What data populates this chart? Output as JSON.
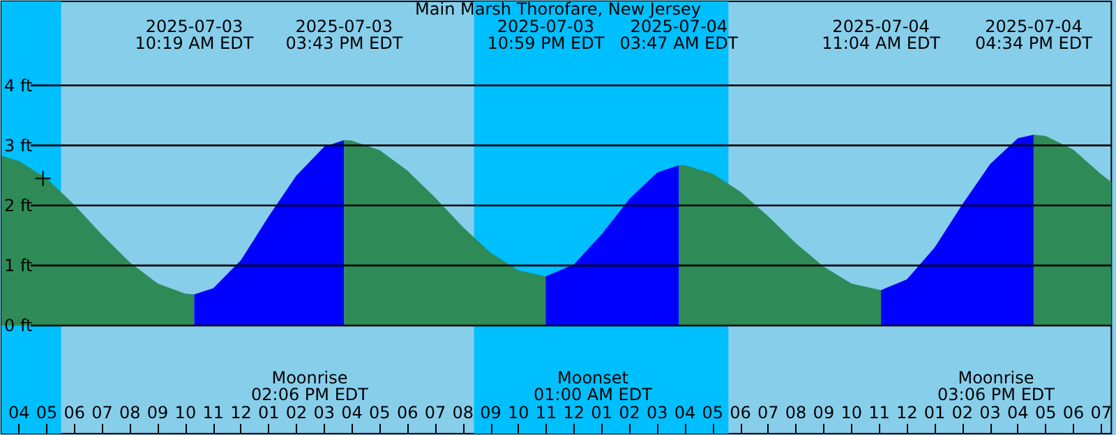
{
  "chart_data": {
    "type": "area",
    "title": "Main Marsh Thorofare, New Jersey",
    "xlim": [
      "2025-07-03T03:22",
      "2025-07-04T19:22"
    ],
    "ylim": [
      -1.8,
      5.4
    ],
    "xticks": [
      {
        "value": "2025-07-03T04:00",
        "label": "04"
      },
      {
        "value": "2025-07-03T05:00",
        "label": "05"
      },
      {
        "value": "2025-07-03T06:00",
        "label": "06"
      },
      {
        "value": "2025-07-03T07:00",
        "label": "07"
      },
      {
        "value": "2025-07-03T08:00",
        "label": "08"
      },
      {
        "value": "2025-07-03T09:00",
        "label": "09"
      },
      {
        "value": "2025-07-03T10:00",
        "label": "10"
      },
      {
        "value": "2025-07-03T11:00",
        "label": "11"
      },
      {
        "value": "2025-07-03T12:00",
        "label": "12"
      },
      {
        "value": "2025-07-03T13:00",
        "label": "01"
      },
      {
        "value": "2025-07-03T14:00",
        "label": "02"
      },
      {
        "value": "2025-07-03T15:00",
        "label": "03"
      },
      {
        "value": "2025-07-03T16:00",
        "label": "04"
      },
      {
        "value": "2025-07-03T17:00",
        "label": "05"
      },
      {
        "value": "2025-07-03T18:00",
        "label": "06"
      },
      {
        "value": "2025-07-03T19:00",
        "label": "07"
      },
      {
        "value": "2025-07-03T20:00",
        "label": "08"
      },
      {
        "value": "2025-07-03T21:00",
        "label": "09"
      },
      {
        "value": "2025-07-03T22:00",
        "label": "10"
      },
      {
        "value": "2025-07-03T23:00",
        "label": "11"
      },
      {
        "value": "2025-07-04T00:00",
        "label": "12"
      },
      {
        "value": "2025-07-04T01:00",
        "label": "01"
      },
      {
        "value": "2025-07-04T02:00",
        "label": "02"
      },
      {
        "value": "2025-07-04T03:00",
        "label": "03"
      },
      {
        "value": "2025-07-04T04:00",
        "label": "04"
      },
      {
        "value": "2025-07-04T05:00",
        "label": "05"
      },
      {
        "value": "2025-07-04T06:00",
        "label": "06"
      },
      {
        "value": "2025-07-04T07:00",
        "label": "07"
      },
      {
        "value": "2025-07-04T08:00",
        "label": "08"
      },
      {
        "value": "2025-07-04T09:00",
        "label": "09"
      },
      {
        "value": "2025-07-04T10:00",
        "label": "10"
      },
      {
        "value": "2025-07-04T11:00",
        "label": "11"
      },
      {
        "value": "2025-07-04T12:00",
        "label": "12"
      },
      {
        "value": "2025-07-04T13:00",
        "label": "01"
      },
      {
        "value": "2025-07-04T14:00",
        "label": "02"
      },
      {
        "value": "2025-07-04T15:00",
        "label": "03"
      },
      {
        "value": "2025-07-04T16:00",
        "label": "04"
      },
      {
        "value": "2025-07-04T17:00",
        "label": "05"
      },
      {
        "value": "2025-07-04T18:00",
        "label": "06"
      },
      {
        "value": "2025-07-04T19:00",
        "label": "07"
      }
    ],
    "yticks": [
      {
        "value": 0,
        "label": "0 ft"
      },
      {
        "value": 1,
        "label": "1 ft"
      },
      {
        "value": 2,
        "label": "2 ft"
      },
      {
        "value": 3,
        "label": "3 ft"
      },
      {
        "value": 4,
        "label": "4 ft"
      }
    ],
    "grid": "y",
    "bands": [
      {
        "axis": "x",
        "from": "2025-07-03T03:22",
        "to": "2025-07-03T05:31",
        "color": "#00bfff"
      },
      {
        "axis": "x",
        "from": "2025-07-03T20:24",
        "to": "2025-07-04T05:34",
        "color": "#00bfff"
      }
    ],
    "series": [
      {
        "color": "#2e8b57",
        "x": [
          "2025-07-03T03:22",
          "2025-07-03T04:00",
          "2025-07-03T05:00",
          "2025-07-03T06:00",
          "2025-07-03T07:00",
          "2025-07-03T08:00",
          "2025-07-03T09:00",
          "2025-07-03T10:00",
          "2025-07-03T10:19"
        ],
        "values": [
          2.83,
          2.74,
          2.45,
          2.01,
          1.51,
          1.05,
          0.7,
          0.53,
          0.52
        ]
      },
      {
        "color": "#0000ff",
        "x": [
          "2025-07-03T10:19",
          "2025-07-03T11:00",
          "2025-07-03T12:00",
          "2025-07-03T13:00",
          "2025-07-03T14:00",
          "2025-07-03T15:00",
          "2025-07-03T15:43"
        ],
        "values": [
          0.52,
          0.62,
          1.09,
          1.82,
          2.5,
          2.98,
          3.09
        ]
      },
      {
        "color": "#2e8b57",
        "x": [
          "2025-07-03T15:43",
          "2025-07-03T16:00",
          "2025-07-03T17:00",
          "2025-07-03T18:00",
          "2025-07-03T19:00",
          "2025-07-03T20:00",
          "2025-07-03T21:00",
          "2025-07-03T22:00",
          "2025-07-03T22:59"
        ],
        "values": [
          3.09,
          3.08,
          2.92,
          2.58,
          2.13,
          1.64,
          1.21,
          0.92,
          0.82
        ]
      },
      {
        "color": "#0000ff",
        "x": [
          "2025-07-03T22:59",
          "2025-07-04T00:00",
          "2025-07-04T01:00",
          "2025-07-04T02:00",
          "2025-07-04T03:00",
          "2025-07-04T03:47"
        ],
        "values": [
          0.82,
          1.02,
          1.52,
          2.11,
          2.55,
          2.67
        ]
      },
      {
        "color": "#2e8b57",
        "x": [
          "2025-07-04T03:47",
          "2025-07-04T04:00",
          "2025-07-04T05:00",
          "2025-07-04T06:00",
          "2025-07-04T07:00",
          "2025-07-04T08:00",
          "2025-07-04T09:00",
          "2025-07-04T10:00",
          "2025-07-04T11:04"
        ],
        "values": [
          2.67,
          2.67,
          2.53,
          2.23,
          1.82,
          1.37,
          0.98,
          0.7,
          0.59
        ]
      },
      {
        "color": "#0000ff",
        "x": [
          "2025-07-04T11:04",
          "2025-07-04T12:00",
          "2025-07-04T13:00",
          "2025-07-04T14:00",
          "2025-07-04T15:00",
          "2025-07-04T16:00",
          "2025-07-04T16:34"
        ],
        "values": [
          0.59,
          0.77,
          1.3,
          2.02,
          2.69,
          3.12,
          3.18
        ]
      },
      {
        "color": "#2e8b57",
        "x": [
          "2025-07-04T16:34",
          "2025-07-04T17:00",
          "2025-07-04T18:00",
          "2025-07-04T19:00",
          "2025-07-04T19:22"
        ],
        "values": [
          3.18,
          3.16,
          2.93,
          2.52,
          2.39
        ]
      },
      {
        "type": "scatter",
        "marker": "cross",
        "color": "#000000",
        "x": [
          "2025-07-03T04:52"
        ],
        "values": [
          2.45
        ]
      }
    ],
    "annotations": [
      "2025-07-03\n10:19 AM EDT",
      "2025-07-03\n03:43 PM EDT",
      "2025-07-03\n10:59 PM EDT",
      "2025-07-04\n03:47 AM EDT",
      "2025-07-04\n11:04 AM EDT",
      "2025-07-04\n04:34 PM EDT",
      "Moonrise\n02:06 PM EDT",
      "Moonset\n01:00 AM EDT",
      "Moonrise\n03:06 PM EDT"
    ]
  }
}
